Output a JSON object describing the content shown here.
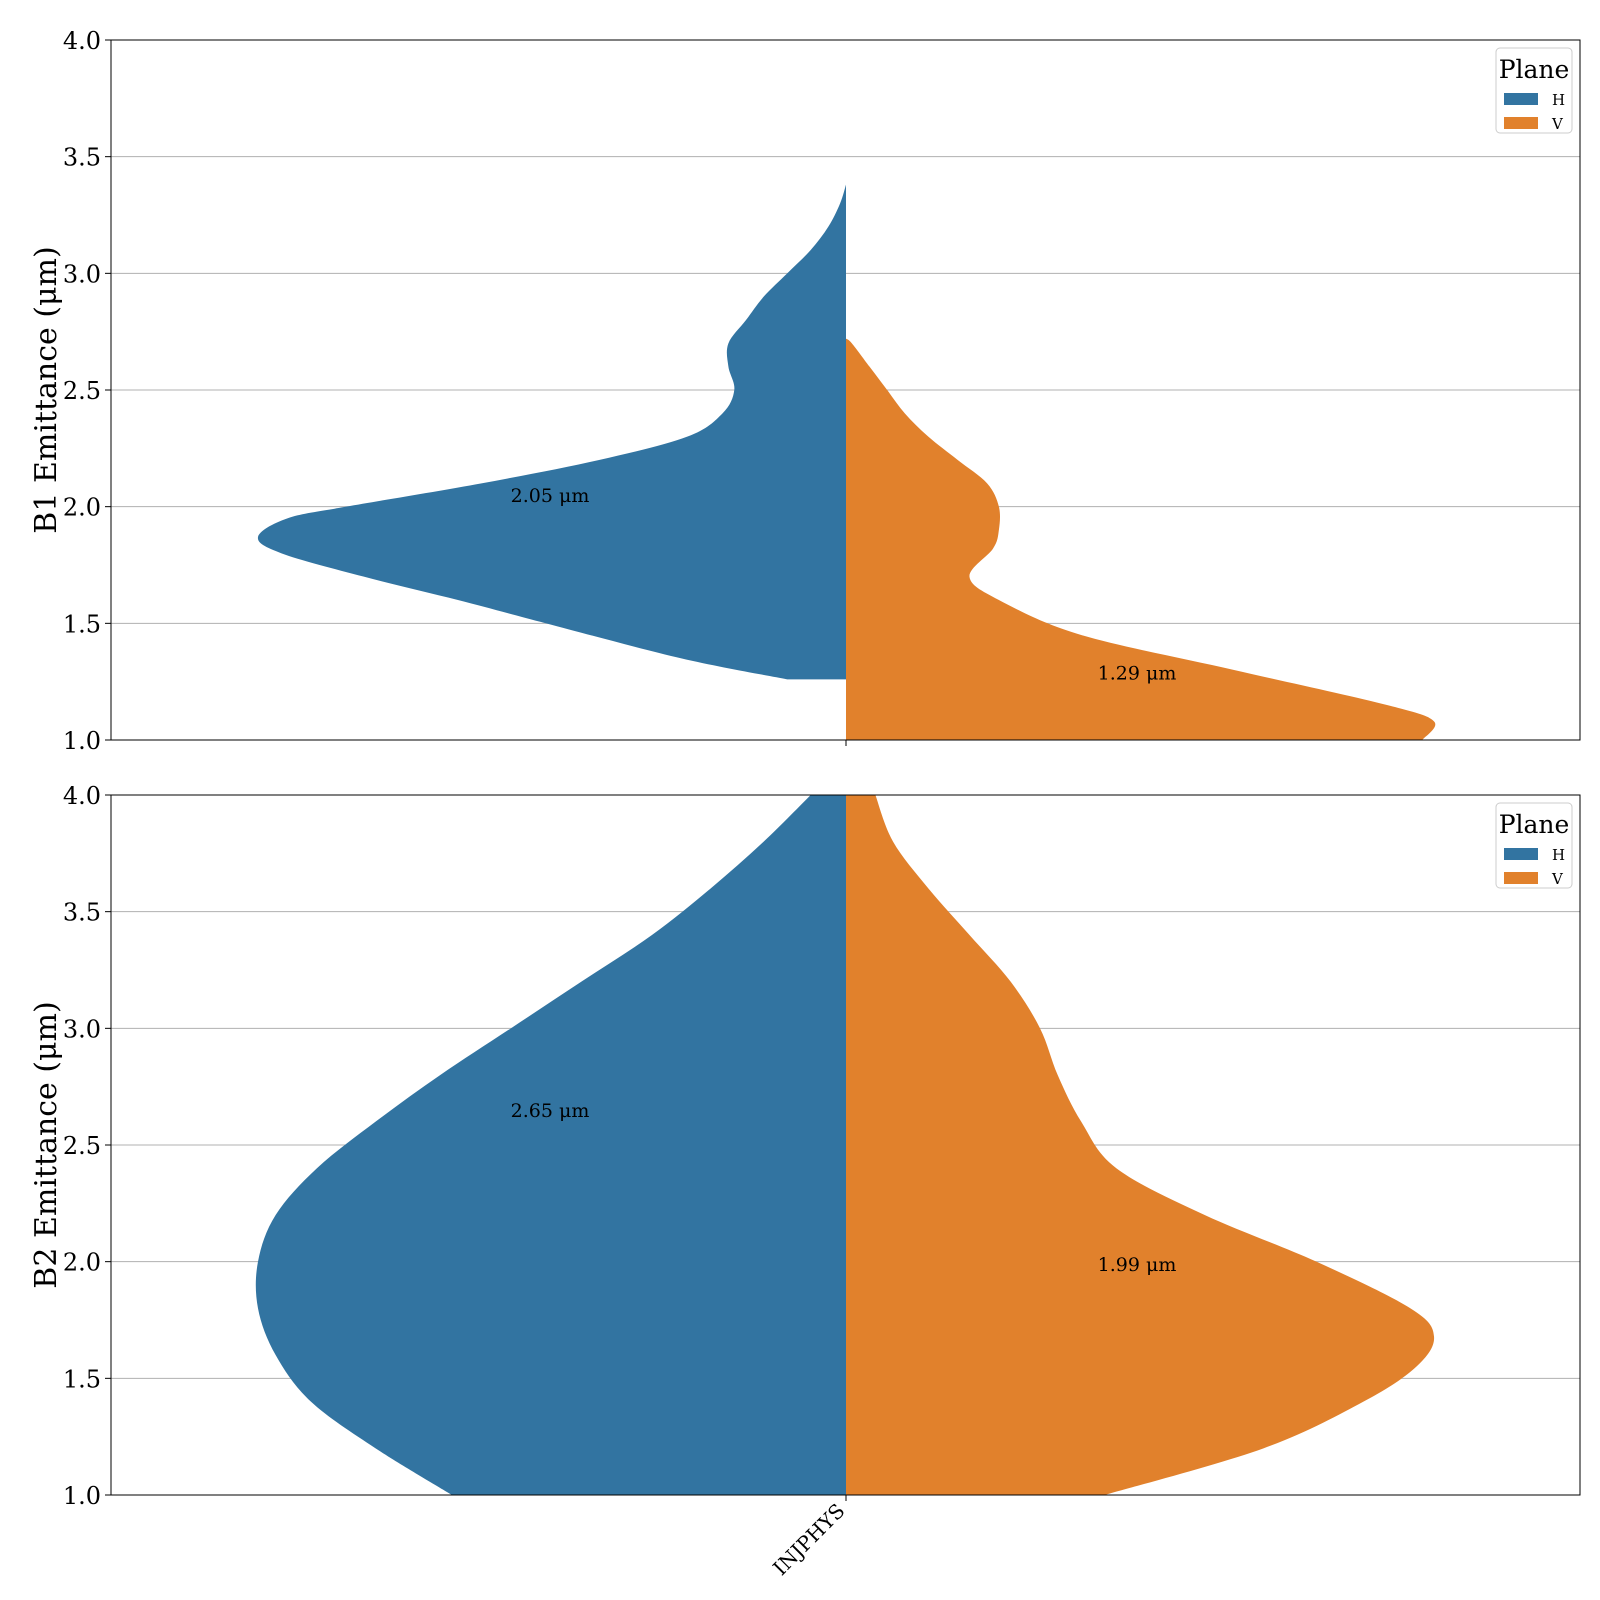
{
  "chart_data": [
    {
      "type": "violin",
      "ylabel": "B1 Emittance (μm)",
      "ylim": [
        1.0,
        4.0
      ],
      "yticks": [
        "1.0",
        "1.5",
        "2.0",
        "2.5",
        "3.0",
        "3.5",
        "4.0"
      ],
      "category": "INJPHYS",
      "grid": "horizontal",
      "legend": {
        "title": "Plane",
        "entries": [
          "H",
          "V"
        ],
        "placement": "top-right"
      },
      "series": [
        {
          "name": "H",
          "side": "left",
          "color": "#3274a1",
          "y_range": [
            1.26,
            3.38
          ],
          "density": [
            [
              1.26,
              0.1
            ],
            [
              1.35,
              0.28
            ],
            [
              1.5,
              0.51
            ],
            [
              1.6,
              0.66
            ],
            [
              1.7,
              0.82
            ],
            [
              1.8,
              0.96
            ],
            [
              1.87,
              1.0
            ],
            [
              1.95,
              0.95
            ],
            [
              2.0,
              0.85
            ],
            [
              2.1,
              0.62
            ],
            [
              2.2,
              0.42
            ],
            [
              2.3,
              0.27
            ],
            [
              2.4,
              0.21
            ],
            [
              2.5,
              0.19
            ],
            [
              2.6,
              0.2
            ],
            [
              2.7,
              0.2
            ],
            [
              2.8,
              0.17
            ],
            [
              2.9,
              0.14
            ],
            [
              3.0,
              0.1
            ],
            [
              3.1,
              0.06
            ],
            [
              3.2,
              0.03
            ],
            [
              3.3,
              0.01
            ],
            [
              3.38,
              0.0
            ]
          ],
          "annotation": {
            "text": "2.05 μm",
            "y": 2.05
          }
        },
        {
          "name": "V",
          "side": "right",
          "color": "#e1812c",
          "y_range": [
            1.0,
            2.72
          ],
          "density": [
            [
              1.0,
              0.98
            ],
            [
              1.08,
              1.0
            ],
            [
              1.15,
              0.92
            ],
            [
              1.3,
              0.66
            ],
            [
              1.45,
              0.4
            ],
            [
              1.6,
              0.26
            ],
            [
              1.7,
              0.21
            ],
            [
              1.82,
              0.25
            ],
            [
              1.9,
              0.26
            ],
            [
              2.0,
              0.26
            ],
            [
              2.1,
              0.24
            ],
            [
              2.2,
              0.19
            ],
            [
              2.3,
              0.14
            ],
            [
              2.4,
              0.1
            ],
            [
              2.5,
              0.07
            ],
            [
              2.6,
              0.04
            ],
            [
              2.7,
              0.01
            ],
            [
              2.72,
              0.0
            ]
          ],
          "annotation": {
            "text": "1.29 μm",
            "y": 1.29
          }
        }
      ]
    },
    {
      "type": "violin",
      "ylabel": "B2 Emittance (μm)",
      "ylim": [
        1.0,
        4.0
      ],
      "yticks": [
        "1.0",
        "1.5",
        "2.0",
        "2.5",
        "3.0",
        "3.5",
        "4.0"
      ],
      "category": "INJPHYS",
      "grid": "horizontal",
      "legend": {
        "title": "Plane",
        "entries": [
          "H",
          "V"
        ],
        "placement": "top-right"
      },
      "series": [
        {
          "name": "H",
          "side": "left",
          "color": "#3274a1",
          "y_range": [
            1.0,
            4.0
          ],
          "density": [
            [
              1.0,
              0.67
            ],
            [
              1.2,
              0.8
            ],
            [
              1.4,
              0.91
            ],
            [
              1.6,
              0.97
            ],
            [
              1.8,
              1.0
            ],
            [
              2.0,
              1.0
            ],
            [
              2.2,
              0.97
            ],
            [
              2.4,
              0.9
            ],
            [
              2.6,
              0.8
            ],
            [
              2.8,
              0.69
            ],
            [
              3.0,
              0.57
            ],
            [
              3.2,
              0.45
            ],
            [
              3.4,
              0.33
            ],
            [
              3.6,
              0.23
            ],
            [
              3.8,
              0.14
            ],
            [
              4.0,
              0.06
            ]
          ],
          "annotation": {
            "text": "2.65 μm",
            "y": 2.65
          }
        },
        {
          "name": "V",
          "side": "right",
          "color": "#e1812c",
          "y_range": [
            1.0,
            4.0
          ],
          "density": [
            [
              1.0,
              0.44
            ],
            [
              1.2,
              0.71
            ],
            [
              1.4,
              0.88
            ],
            [
              1.55,
              0.97
            ],
            [
              1.68,
              1.0
            ],
            [
              1.8,
              0.96
            ],
            [
              2.0,
              0.8
            ],
            [
              2.2,
              0.61
            ],
            [
              2.4,
              0.46
            ],
            [
              2.6,
              0.4
            ],
            [
              2.8,
              0.36
            ],
            [
              3.0,
              0.33
            ],
            [
              3.2,
              0.28
            ],
            [
              3.4,
              0.21
            ],
            [
              3.6,
              0.14
            ],
            [
              3.8,
              0.08
            ],
            [
              4.0,
              0.05
            ]
          ],
          "annotation": {
            "text": "1.99 μm",
            "y": 1.99
          }
        }
      ]
    }
  ]
}
